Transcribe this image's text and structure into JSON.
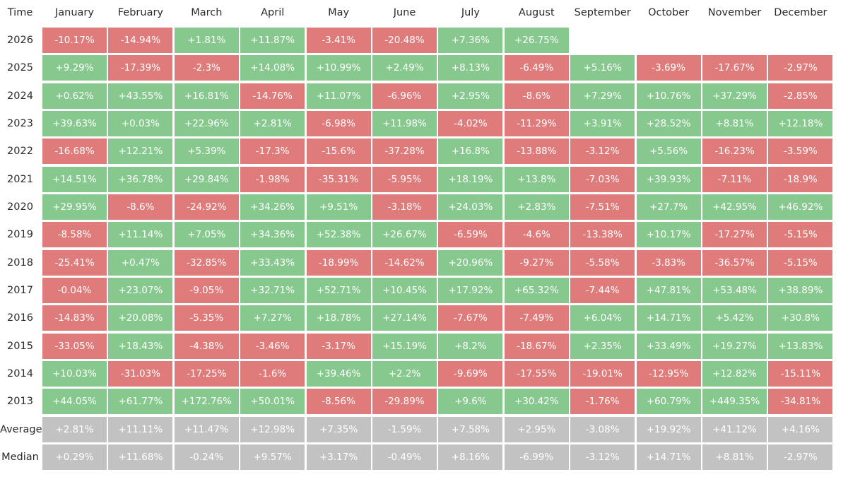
{
  "chart_data": {
    "type": "heatmap",
    "corner_label": "Time",
    "columns": [
      "January",
      "February",
      "March",
      "April",
      "May",
      "June",
      "July",
      "August",
      "September",
      "October",
      "November",
      "December"
    ],
    "colors": {
      "positive": "#86c88e",
      "negative": "#e07b7b",
      "summary": "#c2c2c2"
    },
    "rows": [
      {
        "label": "2026",
        "values": [
          "-10.17%",
          "-14.94%",
          "+1.81%",
          "+11.87%",
          "-3.41%",
          "-20.48%",
          "+7.36%",
          "+26.75%",
          null,
          null,
          null,
          null
        ]
      },
      {
        "label": "2025",
        "values": [
          "+9.29%",
          "-17.39%",
          "-2.3%",
          "+14.08%",
          "+10.99%",
          "+2.49%",
          "+8.13%",
          "-6.49%",
          "+5.16%",
          "-3.69%",
          "-17.67%",
          "-2.97%"
        ]
      },
      {
        "label": "2024",
        "values": [
          "+0.62%",
          "+43.55%",
          "+16.81%",
          "-14.76%",
          "+11.07%",
          "-6.96%",
          "+2.95%",
          "-8.6%",
          "+7.29%",
          "+10.76%",
          "+37.29%",
          "-2.85%"
        ]
      },
      {
        "label": "2023",
        "values": [
          "+39.63%",
          "+0.03%",
          "+22.96%",
          "+2.81%",
          "-6.98%",
          "+11.98%",
          "-4.02%",
          "-11.29%",
          "+3.91%",
          "+28.52%",
          "+8.81%",
          "+12.18%"
        ]
      },
      {
        "label": "2022",
        "values": [
          "-16.68%",
          "+12.21%",
          "+5.39%",
          "-17.3%",
          "-15.6%",
          "-37.28%",
          "+16.8%",
          "-13.88%",
          "-3.12%",
          "+5.56%",
          "-16.23%",
          "-3.59%"
        ]
      },
      {
        "label": "2021",
        "values": [
          "+14.51%",
          "+36.78%",
          "+29.84%",
          "-1.98%",
          "-35.31%",
          "-5.95%",
          "+18.19%",
          "+13.8%",
          "-7.03%",
          "+39.93%",
          "-7.11%",
          "-18.9%"
        ]
      },
      {
        "label": "2020",
        "values": [
          "+29.95%",
          "-8.6%",
          "-24.92%",
          "+34.26%",
          "+9.51%",
          "-3.18%",
          "+24.03%",
          "+2.83%",
          "-7.51%",
          "+27.7%",
          "+42.95%",
          "+46.92%"
        ]
      },
      {
        "label": "2019",
        "values": [
          "-8.58%",
          "+11.14%",
          "+7.05%",
          "+34.36%",
          "+52.38%",
          "+26.67%",
          "-6.59%",
          "-4.6%",
          "-13.38%",
          "+10.17%",
          "-17.27%",
          "-5.15%"
        ]
      },
      {
        "label": "2018",
        "values": [
          "-25.41%",
          "+0.47%",
          "-32.85%",
          "+33.43%",
          "-18.99%",
          "-14.62%",
          "+20.96%",
          "-9.27%",
          "-5.58%",
          "-3.83%",
          "-36.57%",
          "-5.15%"
        ]
      },
      {
        "label": "2017",
        "values": [
          "-0.04%",
          "+23.07%",
          "-9.05%",
          "+32.71%",
          "+52.71%",
          "+10.45%",
          "+17.92%",
          "+65.32%",
          "-7.44%",
          "+47.81%",
          "+53.48%",
          "+38.89%"
        ]
      },
      {
        "label": "2016",
        "values": [
          "-14.83%",
          "+20.08%",
          "-5.35%",
          "+7.27%",
          "+18.78%",
          "+27.14%",
          "-7.67%",
          "-7.49%",
          "+6.04%",
          "+14.71%",
          "+5.42%",
          "+30.8%"
        ]
      },
      {
        "label": "2015",
        "values": [
          "-33.05%",
          "+18.43%",
          "-4.38%",
          "-3.46%",
          "-3.17%",
          "+15.19%",
          "+8.2%",
          "-18.67%",
          "+2.35%",
          "+33.49%",
          "+19.27%",
          "+13.83%"
        ]
      },
      {
        "label": "2014",
        "values": [
          "+10.03%",
          "-31.03%",
          "-17.25%",
          "-1.6%",
          "+39.46%",
          "+2.2%",
          "-9.69%",
          "-17.55%",
          "-19.01%",
          "-12.95%",
          "+12.82%",
          "-15.11%"
        ]
      },
      {
        "label": "2013",
        "values": [
          "+44.05%",
          "+61.77%",
          "+172.76%",
          "+50.01%",
          "-8.56%",
          "-29.89%",
          "+9.6%",
          "+30.42%",
          "-1.76%",
          "+60.79%",
          "+449.35%",
          "-34.81%"
        ]
      }
    ],
    "summary_rows": [
      {
        "label": "Average",
        "values": [
          "+2.81%",
          "+11.11%",
          "+11.47%",
          "+12.98%",
          "+7.35%",
          "-1.59%",
          "+7.58%",
          "+2.95%",
          "-3.08%",
          "+19.92%",
          "+41.12%",
          "+4.16%"
        ]
      },
      {
        "label": "Median",
        "values": [
          "+0.29%",
          "+11.68%",
          "-0.24%",
          "+9.57%",
          "+3.17%",
          "-0.49%",
          "+8.16%",
          "-6.99%",
          "-3.12%",
          "+14.71%",
          "+8.81%",
          "-2.97%"
        ]
      }
    ]
  }
}
